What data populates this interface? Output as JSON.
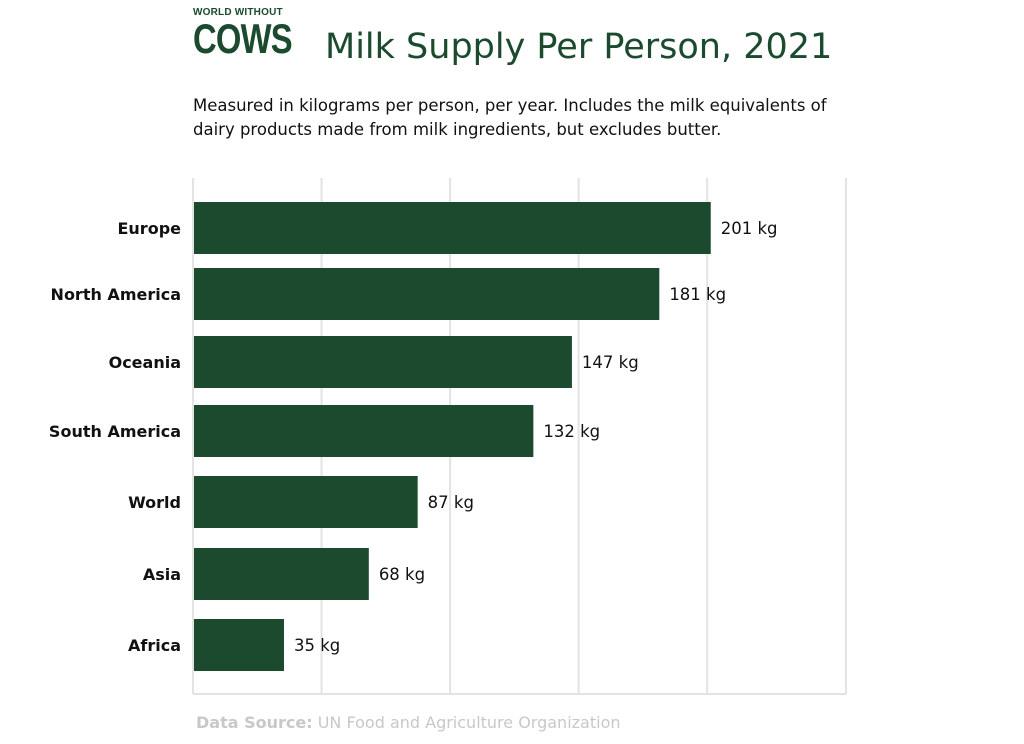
{
  "branding": {
    "logo_top": "WORLD WITHOUT",
    "logo_main": "COWS"
  },
  "colors": {
    "bar": "#1b4a2e",
    "grid": "#e3e3e3",
    "title": "#1b4a2e"
  },
  "chart_data": {
    "type": "bar",
    "orientation": "horizontal",
    "title": "Milk Supply Per Person, 2021",
    "subtitle": "Measured in kilograms per person, per year. Includes the milk equivalents of dairy products made from milk ingredients, but excludes butter.",
    "categories": [
      "Europe",
      "North America",
      "Oceania",
      "South America",
      "World",
      "Asia",
      "Africa"
    ],
    "values": [
      201,
      181,
      147,
      132,
      87,
      68,
      35
    ],
    "value_labels": [
      "201 kg",
      "181 kg",
      "147 kg",
      "132 kg",
      "87 kg",
      "68 kg",
      "35 kg"
    ],
    "unit": "kg",
    "xlim": [
      0,
      254
    ],
    "grid": true
  },
  "source": {
    "label": "Data Source:",
    "text": "UN Food and Agriculture Organization"
  }
}
